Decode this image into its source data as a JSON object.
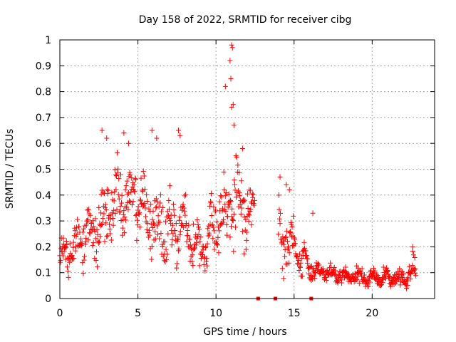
{
  "chart_data": {
    "type": "scatter",
    "title": "Day 158 of 2022, SRMTID for receiver cibg",
    "xlabel": "GPS time / hours",
    "ylabel": "SRMTID / TECUs",
    "xlim": [
      0,
      24
    ],
    "ylim": [
      0,
      1
    ],
    "x_ticks": [
      0,
      5,
      10,
      15,
      20
    ],
    "x_tick_labels": [
      "0",
      "5",
      "10",
      "15",
      "20"
    ],
    "y_ticks": [
      0,
      0.1,
      0.2,
      0.3,
      0.4,
      0.5,
      0.6,
      0.7,
      0.8,
      0.9,
      1
    ],
    "y_tick_labels": [
      "0",
      "0.1",
      "0.2",
      "0.3",
      "0.4",
      "0.5",
      "0.6",
      "0.7",
      "0.8",
      "0.9",
      "1"
    ],
    "grid": true,
    "marker": "+",
    "series": [
      {
        "name": "SRMTID",
        "color": "#ff0000",
        "envelope_hours": [
          0,
          0.5,
          1,
          1.5,
          2,
          2.5,
          3,
          3.5,
          4,
          4.5,
          5,
          5.5,
          6,
          6.5,
          7,
          7.5,
          8,
          8.5,
          9,
          9.5,
          10,
          10.5,
          11,
          11.5,
          12,
          12.5,
          14,
          14.5,
          15,
          15.5,
          16,
          16.5,
          17,
          17.5,
          18,
          18.5,
          19,
          19.5,
          20,
          20.5,
          21,
          21.5,
          22,
          22.5,
          22.8
        ],
        "envelope_center": [
          0.17,
          0.17,
          0.2,
          0.24,
          0.25,
          0.27,
          0.35,
          0.37,
          0.38,
          0.38,
          0.37,
          0.33,
          0.3,
          0.27,
          0.26,
          0.27,
          0.26,
          0.23,
          0.18,
          0.25,
          0.28,
          0.33,
          0.38,
          0.4,
          0.35,
          0.33,
          0.25,
          0.22,
          0.2,
          0.15,
          0.12,
          0.11,
          0.1,
          0.09,
          0.085,
          0.085,
          0.085,
          0.08,
          0.08,
          0.08,
          0.08,
          0.075,
          0.08,
          0.1,
          0.12
        ],
        "envelope_spread": [
          0.05,
          0.05,
          0.06,
          0.07,
          0.08,
          0.1,
          0.12,
          0.12,
          0.11,
          0.1,
          0.1,
          0.1,
          0.1,
          0.1,
          0.09,
          0.1,
          0.1,
          0.09,
          0.07,
          0.08,
          0.08,
          0.1,
          0.12,
          0.12,
          0.1,
          0.1,
          0.08,
          0.08,
          0.07,
          0.05,
          0.04,
          0.03,
          0.03,
          0.025,
          0.025,
          0.025,
          0.025,
          0.025,
          0.025,
          0.025,
          0.025,
          0.025,
          0.03,
          0.04,
          0.04
        ],
        "sample_interval_hours": 0.025,
        "data_gap_hours": [
          12.5,
          14.0
        ],
        "peaks": [
          {
            "x": 2.7,
            "y": 0.65
          },
          {
            "x": 3.0,
            "y": 0.62
          },
          {
            "x": 4.1,
            "y": 0.64
          },
          {
            "x": 4.4,
            "y": 0.6
          },
          {
            "x": 5.9,
            "y": 0.65
          },
          {
            "x": 6.2,
            "y": 0.62
          },
          {
            "x": 7.6,
            "y": 0.65
          },
          {
            "x": 7.7,
            "y": 0.63
          },
          {
            "x": 10.6,
            "y": 0.82
          },
          {
            "x": 10.9,
            "y": 0.92
          },
          {
            "x": 11.0,
            "y": 0.98
          },
          {
            "x": 11.05,
            "y": 0.97
          },
          {
            "x": 10.95,
            "y": 0.85
          },
          {
            "x": 11.1,
            "y": 0.75
          },
          {
            "x": 11.0,
            "y": 0.74
          },
          {
            "x": 11.15,
            "y": 0.67
          },
          {
            "x": 11.7,
            "y": 0.58
          },
          {
            "x": 14.1,
            "y": 0.47
          },
          {
            "x": 14.5,
            "y": 0.44
          },
          {
            "x": 14.7,
            "y": 0.42
          },
          {
            "x": 16.2,
            "y": 0.33
          },
          {
            "x": 22.6,
            "y": 0.2
          }
        ],
        "zero_points": [
          {
            "x": 12.7,
            "y": 0
          },
          {
            "x": 13.8,
            "y": 0
          },
          {
            "x": 16.1,
            "y": 0
          }
        ]
      }
    ]
  }
}
